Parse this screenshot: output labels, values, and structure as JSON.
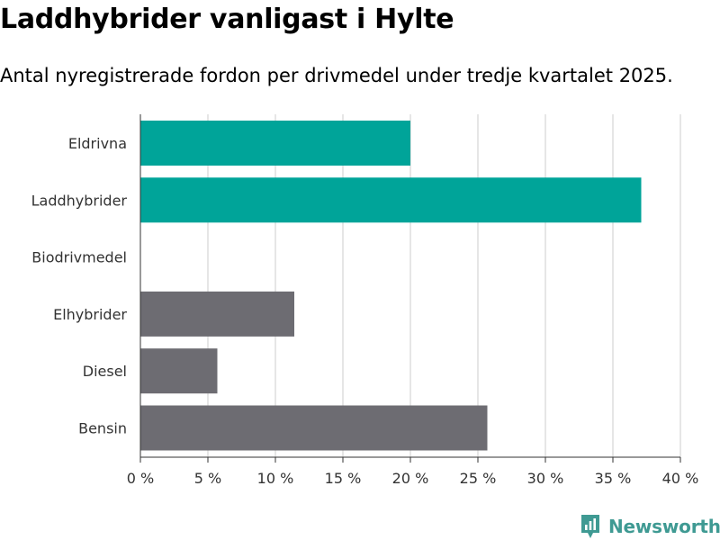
{
  "header": {
    "title": "Laddhybrider vanligast i Hylte",
    "subtitle": "Antal nyregistrerade fordon per drivmedel under tredje kvartalet 2025."
  },
  "brand": {
    "name": "Newsworthy",
    "icon": "newsworthy-logo-icon",
    "color": "#3f9a93"
  },
  "chart_data": {
    "type": "bar",
    "orientation": "horizontal",
    "categories": [
      "Eldrivna",
      "Laddhybrider",
      "Biodrivmedel",
      "Elhybrider",
      "Diesel",
      "Bensin"
    ],
    "values": [
      20.0,
      37.1,
      0,
      11.4,
      5.7,
      25.7
    ],
    "colors": [
      "#00a499",
      "#00a499",
      "#6d6c72",
      "#6d6c72",
      "#6d6c72",
      "#6d6c72"
    ],
    "xlim": [
      0,
      40
    ],
    "xticks": [
      0,
      5,
      10,
      15,
      20,
      25,
      30,
      35,
      40
    ],
    "xtick_labels": [
      "0 %",
      "5 %",
      "10 %",
      "15 %",
      "20 %",
      "25 %",
      "30 %",
      "35 %",
      "40 %"
    ],
    "grid": true,
    "gridline_color": "#dddddd"
  }
}
